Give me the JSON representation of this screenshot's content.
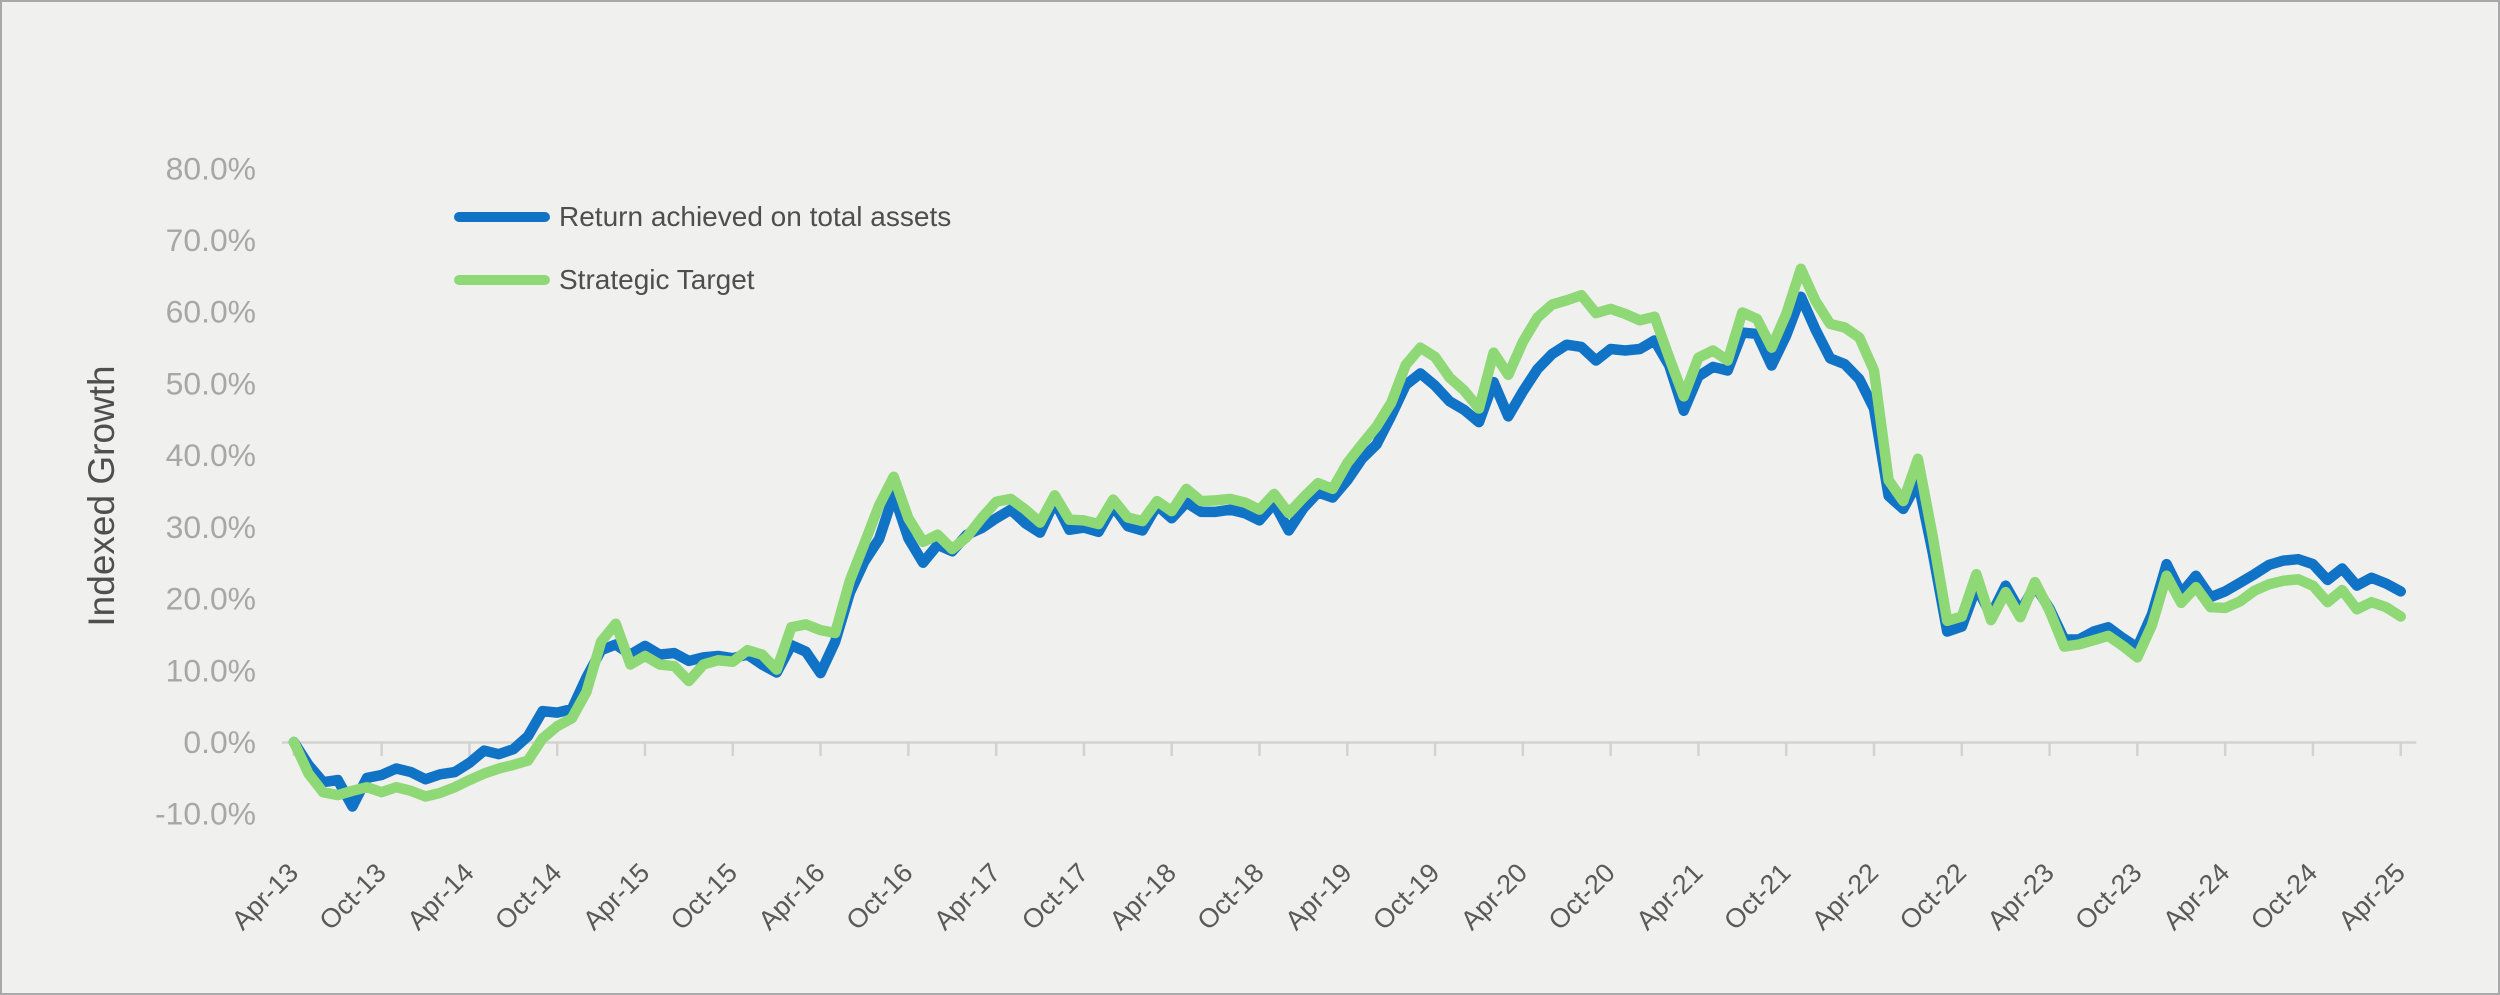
{
  "chart_data": {
    "type": "line",
    "title": "",
    "xlabel": "",
    "ylabel": "Indexed Growth",
    "grid": "off",
    "legend_position": "inside-top-left",
    "background_color": "#F0F0EE",
    "axis_color": "#D2D2D0",
    "ylim": [
      -10,
      80
    ],
    "y_ticks": [
      {
        "v": 80,
        "label": "80.0%"
      },
      {
        "v": 70,
        "label": "70.0%"
      },
      {
        "v": 60,
        "label": "60.0%"
      },
      {
        "v": 50,
        "label": "50.0%"
      },
      {
        "v": 40,
        "label": "40.0%"
      },
      {
        "v": 30,
        "label": "30.0%"
      },
      {
        "v": 20,
        "label": "20.0%"
      },
      {
        "v": 10,
        "label": "10.0%"
      },
      {
        "v": 0,
        "label": "0.0%"
      },
      {
        "v": -10,
        "label": "-10.0%"
      }
    ],
    "x_tick_labels": [
      "Apr-13",
      "Oct-13",
      "Apr-14",
      "Oct-14",
      "Apr-15",
      "Oct-15",
      "Apr-16",
      "Oct-16",
      "Apr-17",
      "Oct-17",
      "Apr-18",
      "Oct-18",
      "Apr-19",
      "Oct-19",
      "Apr-20",
      "Oct-20",
      "Apr-21",
      "Oct-21",
      "Apr-22",
      "Oct-22",
      "Apr-23",
      "Oct-23",
      "Apr-24",
      "Oct-24",
      "Apr-25"
    ],
    "x": [
      "Apr-13",
      "May-13",
      "Jun-13",
      "Jul-13",
      "Aug-13",
      "Sep-13",
      "Oct-13",
      "Nov-13",
      "Dec-13",
      "Jan-14",
      "Feb-14",
      "Mar-14",
      "Apr-14",
      "May-14",
      "Jun-14",
      "Jul-14",
      "Aug-14",
      "Sep-14",
      "Oct-14",
      "Nov-14",
      "Dec-14",
      "Jan-15",
      "Feb-15",
      "Mar-15",
      "Apr-15",
      "May-15",
      "Jun-15",
      "Jul-15",
      "Aug-15",
      "Sep-15",
      "Oct-15",
      "Nov-15",
      "Dec-15",
      "Jan-16",
      "Feb-16",
      "Mar-16",
      "Apr-16",
      "May-16",
      "Jun-16",
      "Jul-16",
      "Aug-16",
      "Sep-16",
      "Oct-16",
      "Nov-16",
      "Dec-16",
      "Jan-17",
      "Feb-17",
      "Mar-17",
      "Apr-17",
      "May-17",
      "Jun-17",
      "Jul-17",
      "Aug-17",
      "Sep-17",
      "Oct-17",
      "Nov-17",
      "Dec-17",
      "Jan-18",
      "Feb-18",
      "Mar-18",
      "Apr-18",
      "May-18",
      "Jun-18",
      "Jul-18",
      "Aug-18",
      "Sep-18",
      "Oct-18",
      "Nov-18",
      "Dec-18",
      "Jan-19",
      "Feb-19",
      "Mar-19",
      "Apr-19",
      "May-19",
      "Jun-19",
      "Jul-19",
      "Aug-19",
      "Sep-19",
      "Oct-19",
      "Nov-19",
      "Dec-19",
      "Jan-20",
      "Feb-20",
      "Mar-20",
      "Apr-20",
      "May-20",
      "Jun-20",
      "Jul-20",
      "Aug-20",
      "Sep-20",
      "Oct-20",
      "Nov-20",
      "Dec-20",
      "Jan-21",
      "Feb-21",
      "Mar-21",
      "Apr-21",
      "May-21",
      "Jun-21",
      "Jul-21",
      "Aug-21",
      "Sep-21",
      "Oct-21",
      "Nov-21",
      "Dec-21",
      "Jan-22",
      "Feb-22",
      "Mar-22",
      "Apr-22",
      "May-22",
      "Jun-22",
      "Jul-22",
      "Aug-22",
      "Sep-22",
      "Oct-22",
      "Nov-22",
      "Dec-22",
      "Jan-23",
      "Feb-23",
      "Mar-23",
      "Apr-23",
      "May-23",
      "Jun-23",
      "Jul-23",
      "Aug-23",
      "Sep-23",
      "Oct-23",
      "Nov-23",
      "Dec-23",
      "Jan-24",
      "Feb-24",
      "Mar-24",
      "Apr-24",
      "May-24",
      "Jun-24",
      "Jul-24",
      "Aug-24",
      "Sep-24",
      "Oct-24",
      "Nov-24",
      "Dec-24",
      "Jan-25",
      "Feb-25",
      "Mar-25",
      "Apr-25"
    ],
    "series": [
      {
        "name": "Return achieved on total assets",
        "color": "#1173C5",
        "values": [
          0.0,
          -3.2,
          -5.6,
          -5.3,
          -9.0,
          -5.0,
          -4.6,
          -3.7,
          -4.2,
          -5.2,
          -4.5,
          -4.2,
          -2.9,
          -1.2,
          -1.7,
          -1.0,
          0.8,
          4.3,
          4.1,
          4.6,
          9.0,
          12.8,
          13.6,
          12.2,
          13.4,
          12.2,
          12.4,
          11.3,
          11.8,
          12.0,
          11.7,
          12.2,
          10.8,
          9.7,
          13.5,
          12.6,
          9.6,
          14.0,
          20.8,
          25.2,
          28.3,
          34.5,
          28.4,
          25.0,
          27.5,
          26.6,
          28.9,
          29.8,
          31.2,
          32.4,
          30.5,
          29.2,
          33.6,
          29.6,
          29.9,
          29.3,
          32.9,
          30.1,
          29.5,
          33.0,
          31.2,
          33.4,
          32.1,
          32.1,
          32.4,
          31.9,
          30.9,
          33.3,
          29.5,
          32.6,
          34.8,
          34.1,
          36.5,
          39.5,
          41.5,
          45.5,
          49.8,
          51.4,
          49.7,
          47.5,
          46.3,
          44.6,
          50.2,
          45.4,
          48.9,
          52.0,
          54.1,
          55.4,
          55.1,
          53.2,
          54.8,
          54.6,
          54.8,
          56.0,
          52.5,
          46.2,
          51.0,
          52.3,
          51.8,
          57.1,
          56.9,
          52.5,
          56.7,
          62.1,
          57.5,
          53.5,
          52.7,
          50.6,
          46.5,
          34.3,
          32.5,
          36.3,
          26.5,
          15.4,
          16.1,
          21.6,
          17.7,
          21.8,
          18.2,
          21.8,
          18.6,
          14.3,
          14.3,
          15.4,
          16.0,
          14.5,
          13.2,
          17.8,
          24.8,
          20.7,
          23.2,
          20.2,
          21.0,
          22.2,
          23.4,
          24.7,
          25.3,
          25.5,
          24.8,
          22.6,
          24.2,
          21.8,
          22.9,
          22.1,
          21.0
        ]
      },
      {
        "name": "Strategic Target",
        "color": "#8FD876",
        "values": [
          0.0,
          -4.4,
          -7.0,
          -7.4,
          -6.8,
          -6.3,
          -7.0,
          -6.3,
          -6.8,
          -7.6,
          -7.1,
          -6.3,
          -5.3,
          -4.4,
          -3.7,
          -3.2,
          -2.6,
          0.5,
          2.2,
          3.3,
          7.0,
          14.0,
          16.5,
          10.8,
          12.0,
          10.8,
          10.6,
          8.5,
          10.8,
          11.4,
          11.2,
          12.8,
          12.2,
          10.1,
          16.0,
          16.4,
          15.6,
          15.2,
          22.5,
          27.7,
          33.0,
          37.0,
          31.2,
          27.9,
          28.9,
          26.9,
          28.6,
          31.2,
          33.5,
          33.9,
          32.4,
          30.6,
          34.4,
          31.0,
          30.9,
          30.4,
          33.8,
          31.3,
          30.8,
          33.6,
          32.2,
          35.3,
          33.6,
          33.7,
          33.9,
          33.4,
          32.4,
          34.6,
          31.9,
          34.1,
          36.1,
          35.3,
          38.9,
          41.5,
          44.0,
          47.3,
          52.6,
          55.0,
          53.7,
          50.8,
          49.0,
          46.5,
          54.3,
          51.2,
          55.8,
          59.2,
          61.0,
          61.6,
          62.3,
          59.8,
          60.4,
          59.7,
          58.8,
          59.3,
          53.6,
          48.2,
          53.6,
          54.6,
          53.2,
          59.9,
          59.0,
          55.0,
          59.7,
          66.0,
          61.5,
          58.3,
          57.8,
          56.4,
          51.8,
          36.5,
          33.6,
          39.5,
          28.8,
          16.9,
          17.5,
          23.4,
          17.0,
          20.9,
          17.4,
          22.3,
          18.3,
          13.3,
          13.6,
          14.2,
          14.8,
          13.4,
          11.8,
          16.3,
          23.2,
          19.4,
          21.6,
          18.8,
          18.7,
          19.6,
          21.1,
          22.0,
          22.5,
          22.7,
          21.8,
          19.5,
          21.2,
          18.5,
          19.5,
          18.8,
          17.5
        ]
      }
    ]
  }
}
